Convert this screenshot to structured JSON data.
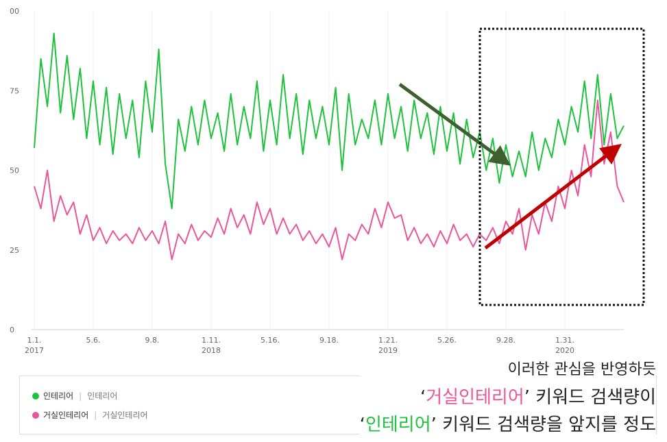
{
  "chart_data": {
    "type": "line",
    "categories": [
      "1.1.",
      null,
      null,
      null,
      null,
      null,
      null,
      null,
      null,
      "5.6.",
      null,
      null,
      null,
      null,
      null,
      null,
      null,
      null,
      "9.8.",
      null,
      null,
      null,
      null,
      null,
      null,
      null,
      null,
      "1.11.",
      null,
      null,
      null,
      null,
      null,
      null,
      null,
      null,
      "5.16.",
      null,
      null,
      null,
      null,
      null,
      null,
      null,
      null,
      "9.18.",
      null,
      null,
      null,
      null,
      null,
      null,
      null,
      null,
      "1.21.",
      null,
      null,
      null,
      null,
      null,
      null,
      null,
      null,
      "5.26.",
      null,
      null,
      null,
      null,
      null,
      null,
      null,
      null,
      "9.28.",
      null,
      null,
      null,
      null,
      null,
      null,
      null,
      null,
      "1.31.",
      null,
      null,
      null,
      null,
      null,
      null,
      null,
      null,
      null
    ],
    "x_sublabels": [
      "2017",
      null,
      null,
      null,
      null,
      null,
      null,
      null,
      null,
      null,
      null,
      null,
      null,
      null,
      null,
      null,
      null,
      null,
      null,
      null,
      null,
      null,
      null,
      null,
      null,
      null,
      null,
      "2018",
      null,
      null,
      null,
      null,
      null,
      null,
      null,
      null,
      null,
      null,
      null,
      null,
      null,
      null,
      null,
      null,
      null,
      null,
      null,
      null,
      null,
      null,
      null,
      null,
      null,
      null,
      "2019",
      null,
      null,
      null,
      null,
      null,
      null,
      null,
      null,
      null,
      null,
      null,
      null,
      null,
      null,
      null,
      null,
      null,
      null,
      null,
      null,
      null,
      null,
      null,
      null,
      null,
      null,
      "2020",
      null,
      null,
      null,
      null,
      null,
      null,
      null,
      null,
      null
    ],
    "series": [
      {
        "name": "인테리어",
        "sublabel": "인테리어",
        "color": "#1ec13c",
        "values": [
          57,
          85,
          70,
          93,
          68,
          86,
          66,
          82,
          60,
          78,
          58,
          76,
          55,
          74,
          60,
          72,
          54,
          78,
          62,
          88,
          52,
          38,
          66,
          56,
          70,
          58,
          72,
          60,
          68,
          56,
          74,
          58,
          70,
          60,
          78,
          56,
          72,
          58,
          80,
          60,
          74,
          55,
          72,
          60,
          70,
          58,
          76,
          50,
          74,
          58,
          66,
          60,
          72,
          58,
          74,
          60,
          70,
          56,
          72,
          60,
          68,
          55,
          70,
          56,
          68,
          52,
          66,
          54,
          62,
          50,
          60,
          46,
          58,
          48,
          56,
          48,
          62,
          50,
          60,
          54,
          66,
          58,
          70,
          62,
          78,
          60,
          80,
          58,
          74,
          60,
          64
        ]
      },
      {
        "name": "거실인테리어",
        "sublabel": "거실인테리어",
        "color": "#e8559a",
        "values": [
          45,
          38,
          50,
          34,
          42,
          36,
          40,
          30,
          36,
          28,
          32,
          27,
          31,
          28,
          30,
          27,
          32,
          28,
          31,
          27,
          34,
          22,
          30,
          27,
          33,
          28,
          31,
          29,
          35,
          30,
          38,
          32,
          36,
          30,
          40,
          33,
          38,
          30,
          35,
          30,
          33,
          28,
          31,
          27,
          30,
          26,
          32,
          22,
          30,
          28,
          33,
          30,
          38,
          32,
          40,
          35,
          36,
          28,
          32,
          27,
          30,
          26,
          31,
          27,
          33,
          28,
          30,
          26,
          30,
          28,
          32,
          27,
          34,
          30,
          38,
          25,
          36,
          30,
          40,
          34,
          45,
          38,
          50,
          42,
          58,
          48,
          72,
          52,
          62,
          45,
          40
        ]
      }
    ],
    "ylim": [
      0,
      100
    ],
    "yticks": [
      0,
      25,
      50,
      75,
      {
        "value": 100,
        "label": "00"
      }
    ],
    "annotation_lines": [
      [
        {
          "text": "이러한 관심을 반영하듯",
          "color": "#222222"
        }
      ],
      [
        {
          "text": "‘",
          "color": "#222222"
        },
        {
          "text": "거실인테리어",
          "color": "#e8559a"
        },
        {
          "text": "’ 키워드 검색량이",
          "color": "#222222"
        }
      ],
      [
        {
          "text": "‘",
          "color": "#222222"
        },
        {
          "text": "인테리어",
          "color": "#1ec13c"
        },
        {
          "text": "’ 키워드 검색량을 앞지를 정도",
          "color": "#222222"
        }
      ]
    ]
  }
}
